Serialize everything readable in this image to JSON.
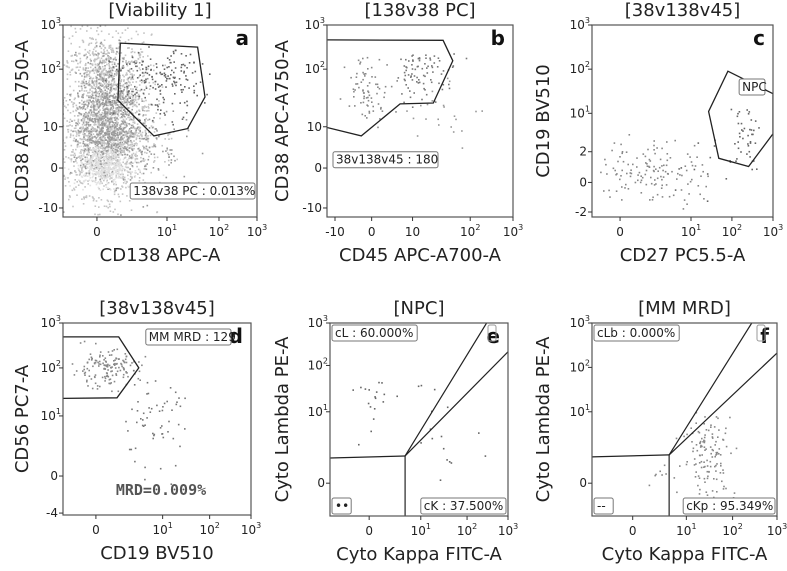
{
  "chart_data": [
    {
      "type": "scatter",
      "id": "a",
      "panel_letter": "a",
      "title": "[Viability 1]",
      "xlabel": "CD138 APC-A",
      "ylabel": "CD38 APC-A750-A",
      "xticks": [
        {
          "v": 0,
          "base": "0"
        },
        {
          "v": 10,
          "base": "10",
          "exp": "1"
        },
        {
          "v": 100,
          "base": "10",
          "exp": "2"
        },
        {
          "v": 1000,
          "base": "10",
          "exp": "3"
        }
      ],
      "yticks": [
        {
          "v": -10,
          "base": "-10"
        },
        {
          "v": 0,
          "base": "0"
        },
        {
          "v": 10,
          "base": "10"
        },
        {
          "v": 100,
          "base": "10",
          "exp": "2"
        },
        {
          "v": 1000,
          "base": "10",
          "exp": "3"
        }
      ],
      "gates": [
        {
          "name": "138v38 PC",
          "closed": true,
          "points": [
            [
              1.7,
              390
            ],
            [
              39,
              316
            ],
            [
              54,
              33
            ],
            [
              25,
              9
            ],
            [
              6.4,
              5.9
            ],
            [
              1.5,
              29
            ]
          ]
        }
      ],
      "labels": [
        {
          "text": "138v38 PC : 0.013%",
          "anchor": "bottom-right"
        }
      ],
      "clusters": [
        {
          "x": 0.6,
          "y": 12,
          "sx": 0.32,
          "sy": 0.85,
          "n": 2200,
          "color": "#c4c4c4"
        },
        {
          "x": 0.6,
          "y": 15,
          "sx": 0.22,
          "sy": 0.55,
          "n": 700,
          "color": "#9a9a9a"
        },
        {
          "x": 0.4,
          "y": 0.3,
          "sx": 0.2,
          "sy": 0.25,
          "n": 400,
          "color": "#e2e2e2"
        },
        {
          "x": 3,
          "y": 3,
          "sx": 0.45,
          "sy": 0.6,
          "n": 150,
          "color": "#999999"
        },
        {
          "x": 8,
          "y": 60,
          "sx": 0.35,
          "sy": 0.3,
          "n": 180,
          "color": "#666666"
        }
      ]
    },
    {
      "type": "scatter",
      "id": "b",
      "panel_letter": "b",
      "title": "[138v38 PC]",
      "xlabel": "CD45 APC-A700-A",
      "ylabel": "CD38 APC-A750-A",
      "xticks": [
        {
          "v": -10,
          "base": "-10"
        },
        {
          "v": 0,
          "base": "0"
        },
        {
          "v": 10,
          "base": "10"
        },
        {
          "v": 100,
          "base": "10",
          "exp": "2"
        },
        {
          "v": 1000,
          "base": "10",
          "exp": "3"
        }
      ],
      "yticks": [
        {
          "v": -10,
          "base": "-10"
        },
        {
          "v": 0,
          "base": "0"
        },
        {
          "v": 10,
          "base": "10"
        },
        {
          "v": 100,
          "base": "10",
          "exp": "2"
        },
        {
          "v": 1000,
          "base": "10",
          "exp": "3"
        }
      ],
      "gates": [
        {
          "name": "38v138v45",
          "closed": true,
          "points": [
            [
              -20,
              460
            ],
            [
              34,
              450
            ],
            [
              50,
              155
            ],
            [
              23,
              26
            ],
            [
              4.8,
              25
            ],
            [
              -1.4,
              5.9
            ],
            [
              -20,
              10
            ]
          ]
        }
      ],
      "labels": [
        {
          "text": "38v138v45 : 180",
          "anchor": "mid-left"
        }
      ],
      "clusters": [
        {
          "x": -0.5,
          "y": 50,
          "sx": 0.3,
          "sy": 0.3,
          "n": 75,
          "color": "#888888"
        },
        {
          "x": 15,
          "y": 90,
          "sx": 0.3,
          "sy": 0.22,
          "n": 85,
          "color": "#777777"
        },
        {
          "x": 40,
          "y": 18,
          "sx": 0.35,
          "sy": 0.3,
          "n": 22,
          "color": "#999999"
        }
      ]
    },
    {
      "type": "scatter",
      "id": "c",
      "panel_letter": "c",
      "title": "[38v138v45]",
      "xlabel": "CD27 PC5.5-A",
      "ylabel": "CD19 BV510",
      "xticks": [
        {
          "v": 0,
          "base": "0"
        },
        {
          "v": 10,
          "base": "10",
          "exp": "1"
        },
        {
          "v": 100,
          "base": "10",
          "exp": "2"
        },
        {
          "v": 1000,
          "base": "10",
          "exp": "3"
        }
      ],
      "yticks": [
        {
          "v": -2,
          "base": "-2"
        },
        {
          "v": 0,
          "base": "0"
        },
        {
          "v": 2,
          "base": "2"
        },
        {
          "v": 10,
          "base": "10",
          "exp": "1"
        },
        {
          "v": 100,
          "base": "10",
          "exp": "2"
        },
        {
          "v": 1000,
          "base": "10",
          "exp": "3"
        }
      ],
      "gates": [
        {
          "name": "NPC",
          "closed": true,
          "points": [
            [
              80,
              90
            ],
            [
              1000,
              28
            ],
            [
              1000,
              4.5
            ],
            [
              255,
              0.95
            ],
            [
              48,
              1.5
            ],
            [
              27,
              11
            ]
          ]
        }
      ],
      "labels": [
        {
          "text": "NPC",
          "anchor": "gate"
        }
      ],
      "clusters": [
        {
          "x": 2.5,
          "y": 0.7,
          "sx": 0.4,
          "sy": 0.22,
          "n": 140,
          "color": "#888888"
        },
        {
          "x": 200,
          "y": 5,
          "sx": 0.18,
          "sy": 0.25,
          "n": 42,
          "color": "#666666"
        },
        {
          "x": 25,
          "y": 1.2,
          "sx": 0.3,
          "sy": 0.3,
          "n": 12,
          "color": "#666666"
        }
      ]
    },
    {
      "type": "scatter",
      "id": "d",
      "panel_letter": "d",
      "title": "[38v138v45]",
      "xlabel": "CD19 BV510",
      "ylabel": "CD56 PC7-A",
      "xticks": [
        {
          "v": 0,
          "base": "0"
        },
        {
          "v": 10,
          "base": "10",
          "exp": "1"
        },
        {
          "v": 100,
          "base": "10",
          "exp": "2"
        },
        {
          "v": 1000,
          "base": "10",
          "exp": "3"
        }
      ],
      "yticks": [
        {
          "v": -4,
          "base": "-4"
        },
        {
          "v": 0,
          "base": "0"
        },
        {
          "v": 10,
          "base": "10",
          "exp": "1"
        },
        {
          "v": 100,
          "base": "10",
          "exp": "2"
        },
        {
          "v": 1000,
          "base": "10",
          "exp": "3"
        }
      ],
      "gates": [
        {
          "name": "MM MRD",
          "closed": true,
          "points": [
            [
              -10,
              490
            ],
            [
              1.75,
              490
            ],
            [
              4.2,
              100
            ],
            [
              1.6,
              24
            ],
            [
              -10,
              23
            ]
          ]
        }
      ],
      "labels": [
        {
          "text": "MM MRD : 129",
          "anchor": "top-right"
        }
      ],
      "annotation": "MRD=0.009%",
      "clusters": [
        {
          "x": 0.6,
          "y": 100,
          "sx": 0.25,
          "sy": 0.2,
          "n": 150,
          "color": "#888888"
        },
        {
          "x": 7,
          "y": 8,
          "sx": 0.3,
          "sy": 0.4,
          "n": 60,
          "color": "#777777"
        }
      ]
    },
    {
      "type": "scatter",
      "id": "e",
      "panel_letter": "e",
      "title": "[NPC]",
      "xlabel": "Cyto Kappa FITC-A",
      "ylabel": "Cyto Lambda PE-A",
      "xticks": [
        {
          "v": 0,
          "base": "0"
        },
        {
          "v": 10,
          "base": "10",
          "exp": "1"
        },
        {
          "v": 100,
          "base": "10",
          "exp": "2"
        },
        {
          "v": 1000,
          "base": "10",
          "exp": "3"
        }
      ],
      "yticks": [
        {
          "v": 0,
          "base": "0"
        },
        {
          "v": 10,
          "base": "10",
          "exp": "1"
        },
        {
          "v": 100,
          "base": "10",
          "exp": "2"
        },
        {
          "v": 1000,
          "base": "10",
          "exp": "3"
        }
      ],
      "quadrant": {
        "x": 4.8,
        "y": 2,
        "diag1": [
          300,
          1000
        ],
        "diag2": [
          1000,
          210
        ]
      },
      "labels": [
        {
          "text": "cL : 60.000%",
          "anchor": "top-left"
        },
        {
          "text": "cK : 37.500%",
          "anchor": "bottom-right"
        },
        {
          "text": "••",
          "anchor": "bottom-left"
        }
      ],
      "clusters": [
        {
          "x": 0.5,
          "y": 25,
          "sx": 0.2,
          "sy": 0.35,
          "n": 18,
          "color": "#666666"
        },
        {
          "x": 40,
          "y": 0.5,
          "sx": 0.45,
          "sy": 0.45,
          "n": 16,
          "color": "#666666"
        },
        {
          "x": 20,
          "y": 20,
          "sx": 0.2,
          "sy": 0.2,
          "n": 5,
          "color": "#666666"
        }
      ]
    },
    {
      "type": "scatter",
      "id": "f",
      "panel_letter": "f",
      "title": "[MM MRD]",
      "xlabel": "Cyto Kappa FITC-A",
      "ylabel": "Cyto Lambda PE-A",
      "xticks": [
        {
          "v": 0,
          "base": "0"
        },
        {
          "v": 10,
          "base": "10",
          "exp": "1"
        },
        {
          "v": 100,
          "base": "10",
          "exp": "2"
        },
        {
          "v": 1000,
          "base": "10",
          "exp": "3"
        }
      ],
      "yticks": [
        {
          "v": 0,
          "base": "0"
        },
        {
          "v": 10,
          "base": "10",
          "exp": "1"
        },
        {
          "v": 100,
          "base": "10",
          "exp": "2"
        },
        {
          "v": 1000,
          "base": "10",
          "exp": "3"
        }
      ],
      "quadrant": {
        "x": 4.6,
        "y": 2.1,
        "diag1": [
          270,
          1000
        ],
        "diag2": [
          1000,
          210
        ]
      },
      "labels": [
        {
          "text": "cLb : 0.000%",
          "anchor": "top-left"
        },
        {
          "text": "cKp : 95.349%",
          "anchor": "bottom-right"
        },
        {
          "text": "--",
          "anchor": "bottom-left"
        }
      ],
      "clusters": [
        {
          "x": 30,
          "y": 2.2,
          "sx": 0.28,
          "sy": 0.3,
          "n": 125,
          "color": "#888888"
        },
        {
          "x": 2,
          "y": 0.8,
          "sx": 0.15,
          "sy": 0.15,
          "n": 7,
          "color": "#888888"
        }
      ]
    }
  ]
}
